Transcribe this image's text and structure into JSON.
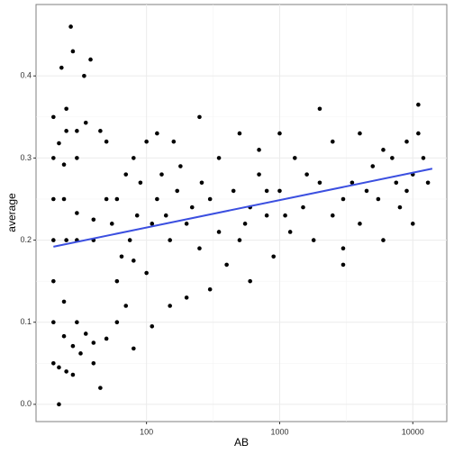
{
  "chart_data": {
    "type": "scatter",
    "x_label": "AB",
    "y_label": "average",
    "x_scale": "log",
    "grid": true,
    "color": "#000000",
    "xlim": [
      14.8,
      18000
    ],
    "ylim": [
      -0.021,
      0.487
    ],
    "xticks": [
      100,
      1000,
      10000
    ],
    "yticks": [
      {
        "value": 0,
        "label": "0.0"
      },
      0.1,
      0.2,
      0.3,
      0.4
    ],
    "x": [
      22,
      20,
      22,
      25,
      28,
      20,
      24,
      28,
      32,
      20,
      24,
      30,
      35,
      40,
      20,
      25,
      30,
      40,
      20,
      24,
      30,
      40,
      20,
      24,
      30,
      22,
      20,
      25,
      23,
      27,
      28,
      34,
      38,
      25,
      30,
      35,
      45,
      50,
      45,
      40,
      50,
      60,
      70,
      80,
      110,
      60,
      80,
      100,
      60,
      70,
      80,
      100,
      120,
      160,
      250,
      500,
      1000,
      2000,
      11000,
      3000,
      150,
      200,
      300,
      500,
      700,
      1000,
      1500,
      2000,
      3000,
      5000,
      7000,
      10000,
      4000,
      8000,
      12000,
      600,
      900,
      300,
      200,
      150,
      400,
      250,
      120,
      90,
      130,
      180,
      350,
      700,
      1300,
      2500,
      4000,
      6000,
      9000,
      11000,
      13000,
      10000,
      6000,
      3000,
      1800,
      1200,
      800,
      600,
      450,
      220,
      170,
      110,
      85,
      75,
      65,
      55,
      50,
      2500,
      3500,
      4500,
      5500,
      7500,
      9000,
      1600,
      800,
      550,
      1100,
      350,
      260,
      140
    ],
    "values": [
      0,
      0.05,
      0.045,
      0.04,
      0.036,
      0.1,
      0.083,
      0.071,
      0.062,
      0.15,
      0.125,
      0.1,
      0.086,
      0.075,
      0.2,
      0.2,
      0.2,
      0.2,
      0.25,
      0.25,
      0.233,
      0.225,
      0.3,
      0.292,
      0.3,
      0.318,
      0.35,
      0.36,
      0.41,
      0.46,
      0.43,
      0.4,
      0.42,
      0.333,
      0.333,
      0.343,
      0.333,
      0.32,
      0.02,
      0.05,
      0.08,
      0.1,
      0.12,
      0.068,
      0.095,
      0.15,
      0.175,
      0.16,
      0.25,
      0.28,
      0.3,
      0.32,
      0.33,
      0.32,
      0.35,
      0.33,
      0.33,
      0.36,
      0.365,
      0.17,
      0.2,
      0.22,
      0.25,
      0.2,
      0.28,
      0.26,
      0.24,
      0.27,
      0.25,
      0.29,
      0.3,
      0.28,
      0.22,
      0.24,
      0.3,
      0.15,
      0.18,
      0.14,
      0.13,
      0.12,
      0.17,
      0.19,
      0.25,
      0.27,
      0.28,
      0.29,
      0.3,
      0.31,
      0.3,
      0.32,
      0.33,
      0.31,
      0.32,
      0.33,
      0.27,
      0.22,
      0.2,
      0.19,
      0.2,
      0.21,
      0.23,
      0.24,
      0.26,
      0.24,
      0.26,
      0.22,
      0.23,
      0.2,
      0.18,
      0.22,
      0.25,
      0.23,
      0.27,
      0.26,
      0.25,
      0.27,
      0.26,
      0.28,
      0.26,
      0.22,
      0.23,
      0.21,
      0.27,
      0.23
    ],
    "trend": {
      "color": "#3b4fe0",
      "x": [
        20,
        14000
      ],
      "values": [
        0.192,
        0.287
      ]
    }
  }
}
